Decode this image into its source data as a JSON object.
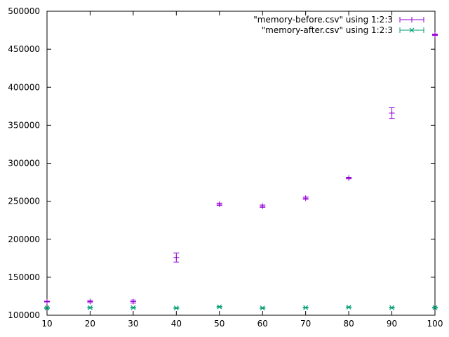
{
  "chart_data": {
    "type": "scatter",
    "title": "",
    "xlabel": "",
    "ylabel": "",
    "xlim": [
      10,
      100
    ],
    "ylim": [
      100000,
      500000
    ],
    "xticks": [
      10,
      20,
      30,
      40,
      50,
      60,
      70,
      80,
      90,
      100
    ],
    "yticks": [
      100000,
      150000,
      200000,
      250000,
      300000,
      350000,
      400000,
      450000,
      500000
    ],
    "xtick_labels": [
      "10",
      "20",
      "30",
      "40",
      "50",
      "60",
      "70",
      "80",
      "90",
      "100"
    ],
    "ytick_labels": [
      "100000",
      "150000",
      "200000",
      "250000",
      "300000",
      "350000",
      "400000",
      "450000",
      "500000"
    ],
    "grid": false,
    "legend_position": "top-right",
    "series": [
      {
        "name": "\"memory-before.csv\" using 1:2:3",
        "color": "#9400d3",
        "marker": "plus",
        "x": [
          10,
          20,
          30,
          40,
          50,
          60,
          70,
          80,
          90,
          100
        ],
        "y": [
          118000,
          118000,
          118000,
          176000,
          246000,
          243500,
          254000,
          280500,
          366000,
          469000
        ],
        "err": [
          500,
          1500,
          2000,
          6000,
          1500,
          1500,
          1500,
          1000,
          7000,
          1000
        ]
      },
      {
        "name": "\"memory-after.csv\" using 1:2:3",
        "color": "#009e73",
        "marker": "cross",
        "x": [
          10,
          20,
          30,
          40,
          50,
          60,
          70,
          80,
          90,
          100
        ],
        "y": [
          109500,
          110000,
          110000,
          109500,
          111000,
          109500,
          110000,
          110500,
          110000,
          110000
        ],
        "err": [
          500,
          500,
          500,
          500,
          500,
          500,
          500,
          500,
          500,
          500
        ]
      }
    ]
  }
}
